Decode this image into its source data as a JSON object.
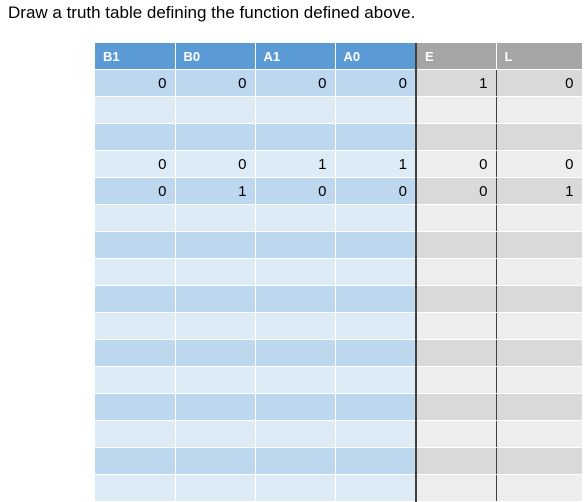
{
  "instruction": "Draw a truth table defining the function defined above.",
  "table": {
    "headers": [
      "B1",
      "B0",
      "A1",
      "A0",
      "E",
      "L"
    ],
    "rows": [
      [
        "0",
        "0",
        "0",
        "0",
        "1",
        "0"
      ],
      [
        "",
        "",
        "",
        "",
        "",
        ""
      ],
      [
        "",
        "",
        "",
        "",
        "",
        ""
      ],
      [
        "0",
        "0",
        "1",
        "1",
        "0",
        "0"
      ],
      [
        "0",
        "1",
        "0",
        "0",
        "0",
        "1"
      ],
      [
        "",
        "",
        "",
        "",
        "",
        ""
      ],
      [
        "",
        "",
        "",
        "",
        "",
        ""
      ],
      [
        "",
        "",
        "",
        "",
        "",
        ""
      ],
      [
        "",
        "",
        "",
        "",
        "",
        ""
      ],
      [
        "",
        "",
        "",
        "",
        "",
        ""
      ],
      [
        "",
        "",
        "",
        "",
        "",
        ""
      ],
      [
        "",
        "",
        "",
        "",
        "",
        ""
      ],
      [
        "",
        "",
        "",
        "",
        "",
        ""
      ],
      [
        "",
        "",
        "",
        "",
        "",
        ""
      ],
      [
        "",
        "",
        "",
        "",
        "",
        ""
      ],
      [
        "",
        "",
        "",
        "",
        "",
        ""
      ]
    ]
  },
  "colors": {
    "header_blue": "#5b9bd5",
    "header_gray": "#a5a5a5",
    "row_blue_dark": "#bdd7ee",
    "row_blue_light": "#ddebf7",
    "row_gray_dark": "#d9d9d9",
    "row_gray_light": "#ededed"
  }
}
